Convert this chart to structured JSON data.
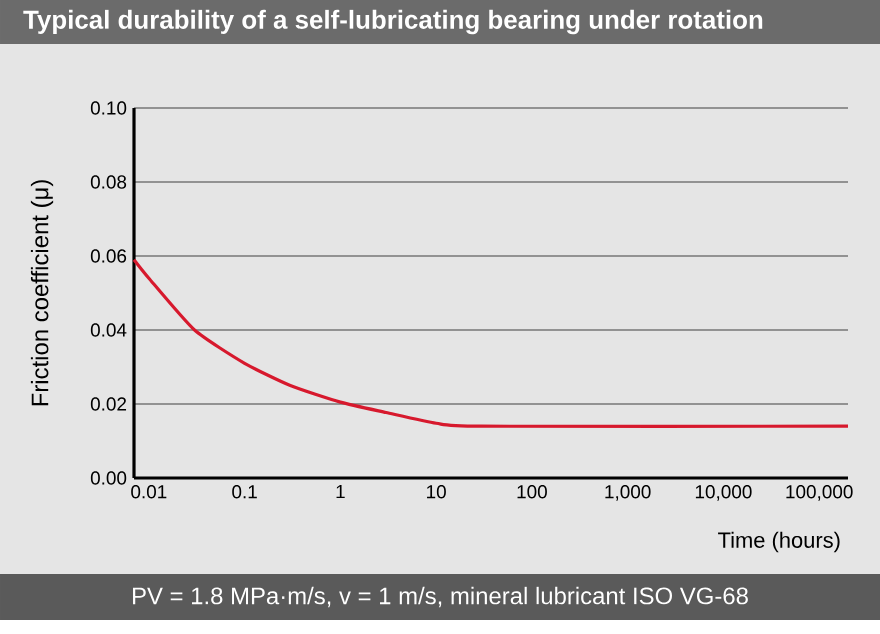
{
  "chart_data": {
    "type": "line",
    "title": "Typical durability of a self-lubricating bearing under rotation",
    "xlabel": "Time (hours)",
    "ylabel": "Friction coefficient (μ)",
    "annotations": [
      "PV = 1.8 MPa·m/s, v = 1 m/s, mineral lubricant ISO VG-68"
    ],
    "log": "x",
    "grid": "y",
    "line_style": "solid",
    "xlim": [
      0.007,
      200000
    ],
    "ylim": [
      0,
      0.1
    ],
    "xticks": [
      0.01,
      0.1,
      1,
      10,
      100,
      {
        "value": 1000,
        "label": "1,000"
      },
      {
        "value": 10000,
        "label": "10,000"
      },
      {
        "value": 100000,
        "label": "100,000"
      }
    ],
    "yticks": [
      {
        "value": 0,
        "label": "0.00"
      },
      0.02,
      0.04,
      0.06,
      0.08,
      {
        "value": 0.1,
        "label": "0.10"
      }
    ],
    "series": [
      {
        "color": "#d7192d",
        "x": [
          0.007,
          0.01,
          0.03,
          0.1,
          0.3,
          1,
          3,
          10,
          30,
          200000
        ],
        "values": [
          0.059,
          0.054,
          0.04,
          0.031,
          0.025,
          0.0205,
          0.0177,
          0.0148,
          0.014,
          0.014
        ]
      }
    ]
  }
}
